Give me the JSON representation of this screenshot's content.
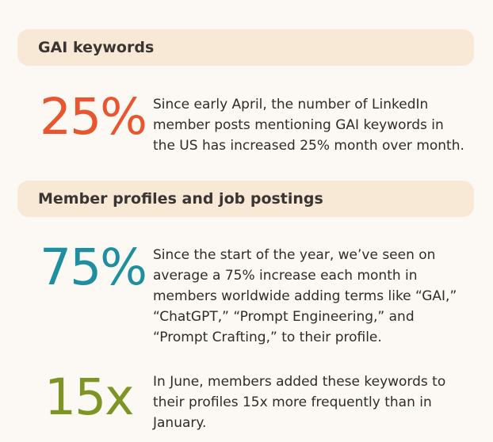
{
  "colors": {
    "background": "#fcf8f3",
    "band": "#f7e9d6",
    "stat_orange": "#e8562f",
    "stat_teal": "#1e8f9f",
    "stat_olive": "#7e9526",
    "text": "#2e2b2a"
  },
  "sections": [
    {
      "heading": "GAI keywords",
      "stats": [
        {
          "value": "25%",
          "color": "#e8562f",
          "text": "Since early April, the number of LinkedIn member posts mentioning GAI keywords in the US has increased 25% month over month."
        }
      ]
    },
    {
      "heading": "Member profiles and job postings",
      "stats": [
        {
          "value": "75%",
          "color": "#1e8f9f",
          "text": "Since the start of the year, we’ve seen on average a 75% increase each month in members worldwide adding terms like “GAI,” “ChatGPT,” “Prompt Engineering,” and “Prompt Crafting,” to their profile."
        },
        {
          "value": "15x",
          "color": "#7e9526",
          "text": "In June, members added these keywords to their profiles 15x more frequently than in January."
        }
      ]
    }
  ]
}
